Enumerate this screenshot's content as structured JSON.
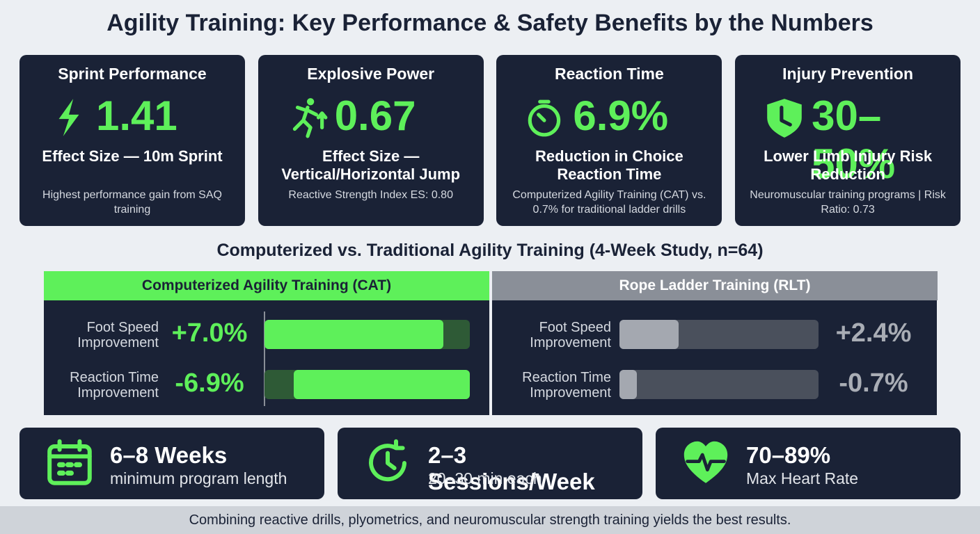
{
  "title": "Agility Training: Key Performance & Safety Benefits by the Numbers",
  "stats": [
    {
      "title": "Sprint Performance",
      "value": "1.41",
      "subtitle": "Effect Size — 10m Sprint",
      "description": "Highest performance gain from SAQ training"
    },
    {
      "title": "Explosive Power",
      "value": "0.67",
      "subtitle": "Effect Size — Vertical/Horizontal Jump",
      "description": "Reactive Strength Index ES: 0.80"
    },
    {
      "title": "Reaction Time",
      "value": "6.9%",
      "subtitle": "Reduction in Choice Reaction Time",
      "description": "Computerized Agility Training (CAT) vs. 0.7% for traditional ladder drills"
    },
    {
      "title": "Injury Prevention",
      "value": "30–50%",
      "subtitle": "Lower Limb Injury Risk Reduction",
      "description": "Neuromuscular training programs | Risk Ratio: 0.73"
    }
  ],
  "comparison": {
    "title": "Computerized vs. Traditional Agility Training (4-Week Study, n=64)",
    "groups": [
      {
        "name": "Computerized Agility Training (CAT)",
        "rows": [
          {
            "label": "Foot Speed Improvement",
            "value": 7.0,
            "value_label": "+7.0%"
          },
          {
            "label": "Reaction Time Improvement",
            "value": -6.9,
            "value_label": "-6.9%"
          }
        ]
      },
      {
        "name": "Rope Ladder Training (RLT)",
        "rows": [
          {
            "label": "Foot Speed Improvement",
            "value": 2.4,
            "value_label": "+2.4%"
          },
          {
            "label": "Reaction Time Improvement",
            "value": -0.7,
            "value_label": "-0.7%"
          }
        ]
      }
    ]
  },
  "highlights": [
    {
      "value": "6–8 Weeks",
      "label": "minimum program length"
    },
    {
      "value": "2–3 Sessions/Week",
      "label": "20–30 min each"
    },
    {
      "value": "70–89%",
      "label": "Max Heart Rate"
    }
  ],
  "footer": "Combining reactive drills, plyometrics, and neuromuscular strength training yields the best results."
}
